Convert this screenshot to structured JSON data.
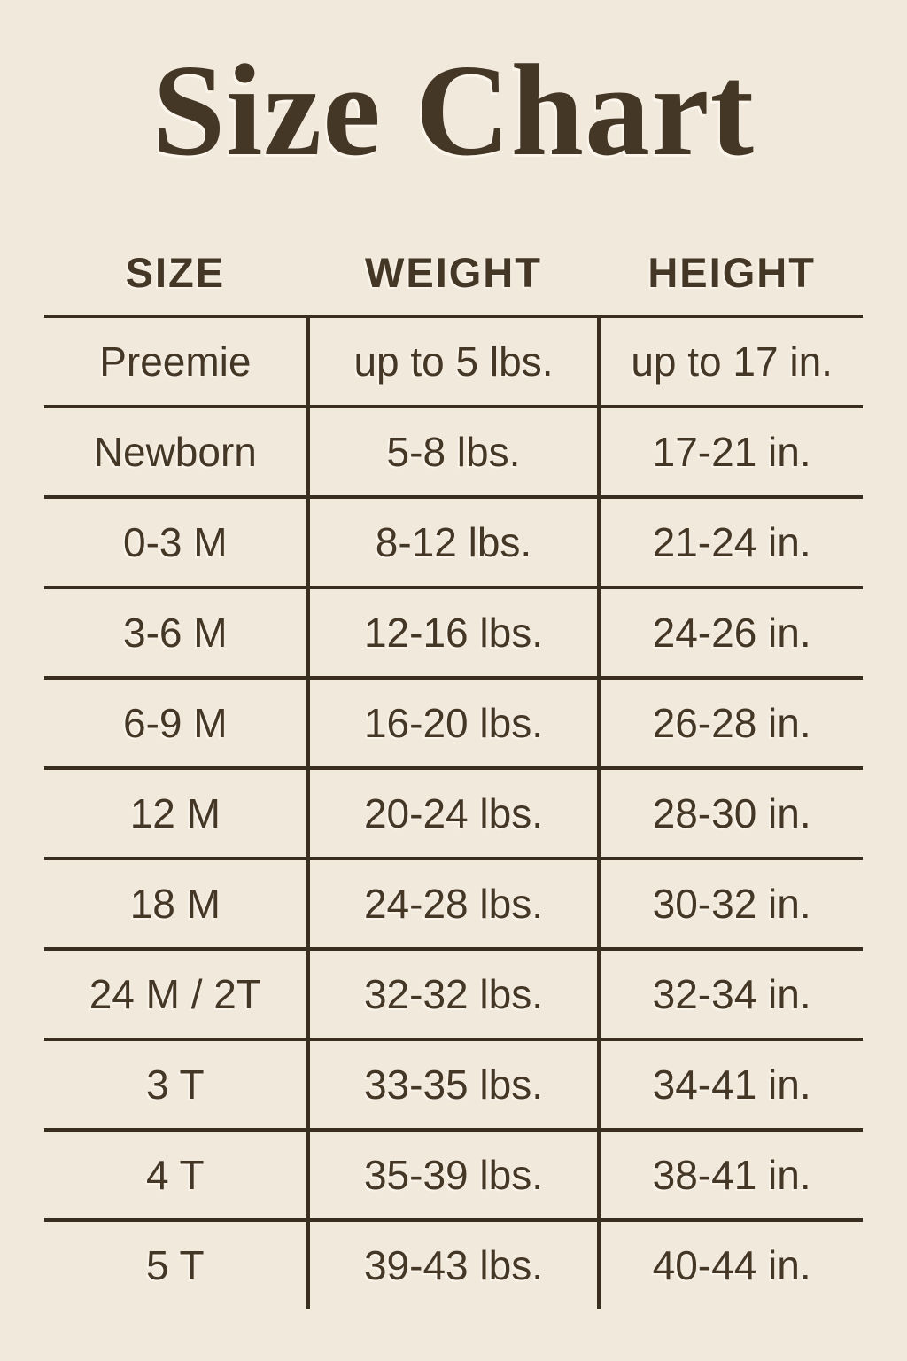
{
  "title": "Size Chart",
  "colors": {
    "background": "#f2e9dd",
    "ink": "#453726",
    "line": "#3a2e20"
  },
  "chart_data": {
    "type": "table",
    "title": "Size Chart",
    "columns": [
      "SIZE",
      "WEIGHT",
      "HEIGHT"
    ],
    "rows": [
      [
        "Preemie",
        "up to 5 lbs.",
        "up to 17 in."
      ],
      [
        "Newborn",
        "5-8 lbs.",
        "17-21 in."
      ],
      [
        "0-3 M",
        "8-12 lbs.",
        "21-24 in."
      ],
      [
        "3-6 M",
        "12-16 lbs.",
        "24-26 in."
      ],
      [
        "6-9 M",
        "16-20 lbs.",
        "26-28 in."
      ],
      [
        "12 M",
        "20-24 lbs.",
        "28-30 in."
      ],
      [
        "18 M",
        "24-28 lbs.",
        "30-32 in."
      ],
      [
        "24 M / 2T",
        "32-32 lbs.",
        "32-34 in."
      ],
      [
        "3 T",
        "33-35 lbs.",
        "34-41 in."
      ],
      [
        "4 T",
        "35-39 lbs.",
        "38-41 in."
      ],
      [
        "5 T",
        "39-43 lbs.",
        "40-44 in."
      ]
    ]
  }
}
